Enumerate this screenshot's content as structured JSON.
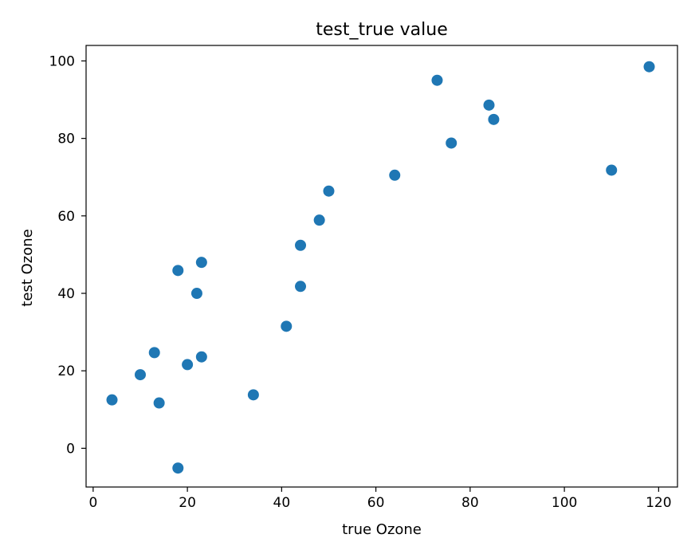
{
  "chart_data": {
    "type": "scatter",
    "title": "test_true value",
    "xlabel": "true Ozone",
    "ylabel": "test Ozone",
    "xlim": [
      -1.5,
      124.0
    ],
    "ylim": [
      -10.0,
      104.0
    ],
    "xticks": [
      0,
      20,
      40,
      60,
      80,
      100,
      120
    ],
    "yticks": [
      0,
      20,
      40,
      60,
      80,
      100
    ],
    "xtick_labels": [
      "0",
      "20",
      "40",
      "60",
      "80",
      "100",
      "120"
    ],
    "ytick_labels": [
      "0",
      "20",
      "40",
      "60",
      "80",
      "100"
    ],
    "grid": false,
    "color": "#1f77b4",
    "points": [
      {
        "x": 4,
        "y": 12.5
      },
      {
        "x": 10,
        "y": 19.0
      },
      {
        "x": 13,
        "y": 24.7
      },
      {
        "x": 14,
        "y": 11.7
      },
      {
        "x": 18,
        "y": 45.9
      },
      {
        "x": 18,
        "y": -5.1
      },
      {
        "x": 20,
        "y": 21.6
      },
      {
        "x": 22,
        "y": 40.0
      },
      {
        "x": 23,
        "y": 48.0
      },
      {
        "x": 23,
        "y": 23.6
      },
      {
        "x": 34,
        "y": 13.8
      },
      {
        "x": 41,
        "y": 31.5
      },
      {
        "x": 44,
        "y": 52.4
      },
      {
        "x": 44,
        "y": 41.8
      },
      {
        "x": 48,
        "y": 58.9
      },
      {
        "x": 50,
        "y": 66.4
      },
      {
        "x": 64,
        "y": 70.5
      },
      {
        "x": 73,
        "y": 95.0
      },
      {
        "x": 76,
        "y": 78.8
      },
      {
        "x": 84,
        "y": 88.6
      },
      {
        "x": 85,
        "y": 84.9
      },
      {
        "x": 110,
        "y": 71.8
      },
      {
        "x": 118,
        "y": 98.5
      }
    ]
  }
}
